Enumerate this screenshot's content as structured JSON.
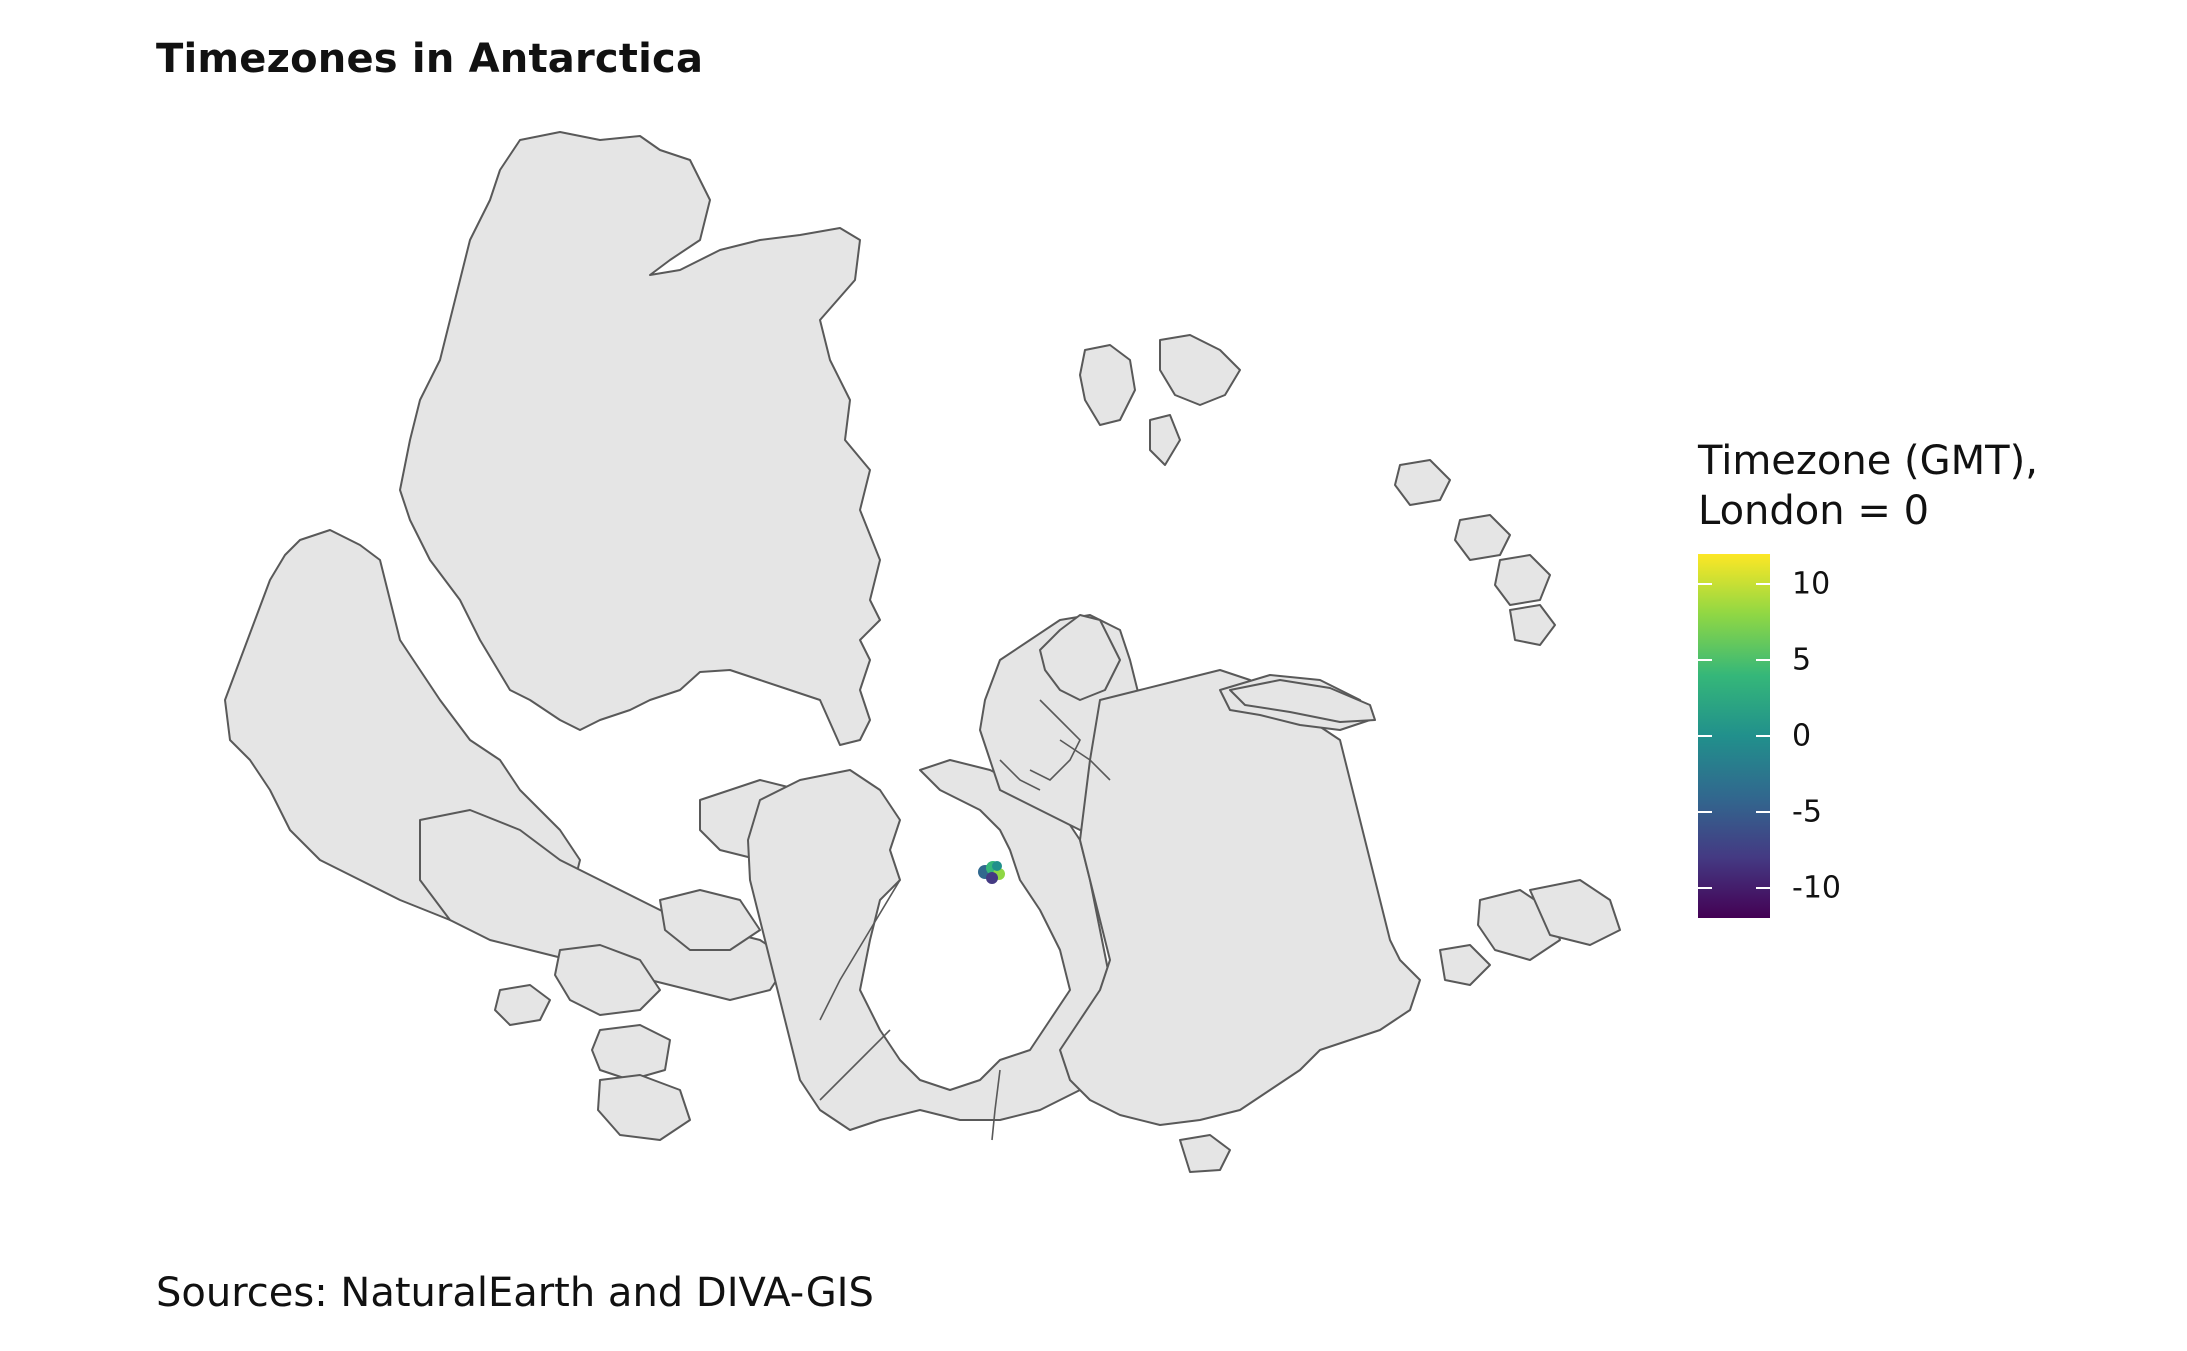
{
  "title": "Timezones in Antarctica",
  "caption": "Sources: NaturalEarth and DIVA-GIS",
  "legend": {
    "title": "Timezone (GMT),\nLondon = 0",
    "scale": "viridis",
    "range": [
      -12,
      12
    ],
    "colors": [
      "#440154",
      "#443a83",
      "#31688e",
      "#21908c",
      "#35b779",
      "#8fd744",
      "#fde725"
    ],
    "ticks": [
      {
        "value": 10,
        "label": "10"
      },
      {
        "value": 5,
        "label": "5"
      },
      {
        "value": 0,
        "label": "0"
      },
      {
        "value": -5,
        "label": "-5"
      },
      {
        "value": -10,
        "label": "-10"
      }
    ]
  },
  "map": {
    "land_fill": "#e5e5e5",
    "land_stroke": "#595959"
  }
}
